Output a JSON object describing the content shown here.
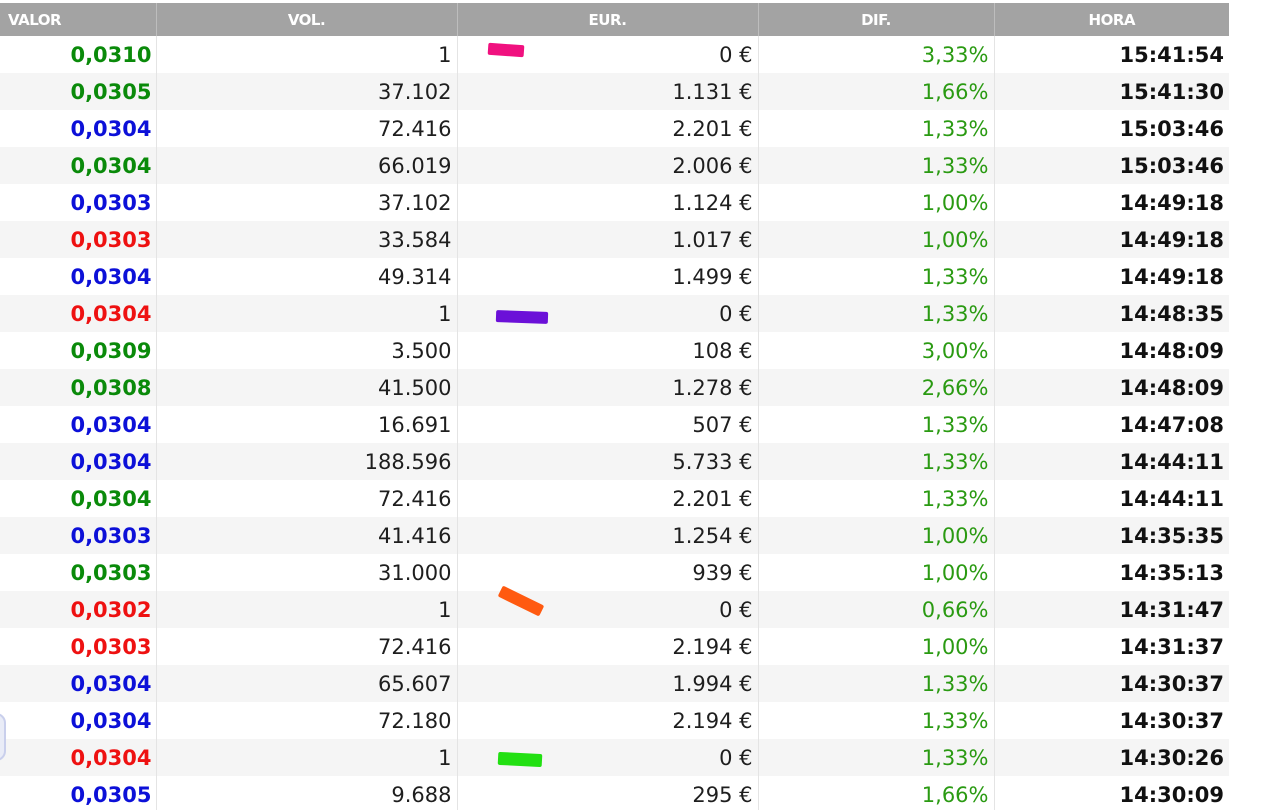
{
  "columns": {
    "valor": "VALOR",
    "vol": "VOL.",
    "eur": "EUR.",
    "dif": "DIF.",
    "hora": "HORA"
  },
  "colors": {
    "green": "#0a8a0a",
    "blue": "#0c10d8",
    "red": "#ee1111",
    "dif_green": "#2a9a12",
    "header_bg": "#a3a3a3"
  },
  "rows": [
    {
      "valor": "0,0310",
      "valor_color": "green",
      "vol": "1",
      "eur": "0 €",
      "dif": "3,33%",
      "hora": "15:41:54",
      "mark": "pink"
    },
    {
      "valor": "0,0305",
      "valor_color": "green",
      "vol": "37.102",
      "eur": "1.131 €",
      "dif": "1,66%",
      "hora": "15:41:30"
    },
    {
      "valor": "0,0304",
      "valor_color": "blue",
      "vol": "72.416",
      "eur": "2.201 €",
      "dif": "1,33%",
      "hora": "15:03:46"
    },
    {
      "valor": "0,0304",
      "valor_color": "green",
      "vol": "66.019",
      "eur": "2.006 €",
      "dif": "1,33%",
      "hora": "15:03:46"
    },
    {
      "valor": "0,0303",
      "valor_color": "blue",
      "vol": "37.102",
      "eur": "1.124 €",
      "dif": "1,00%",
      "hora": "14:49:18"
    },
    {
      "valor": "0,0303",
      "valor_color": "red",
      "vol": "33.584",
      "eur": "1.017 €",
      "dif": "1,00%",
      "hora": "14:49:18"
    },
    {
      "valor": "0,0304",
      "valor_color": "blue",
      "vol": "49.314",
      "eur": "1.499 €",
      "dif": "1,33%",
      "hora": "14:49:18"
    },
    {
      "valor": "0,0304",
      "valor_color": "red",
      "vol": "1",
      "eur": "0 €",
      "dif": "1,33%",
      "hora": "14:48:35",
      "mark": "purple"
    },
    {
      "valor": "0,0309",
      "valor_color": "green",
      "vol": "3.500",
      "eur": "108 €",
      "dif": "3,00%",
      "hora": "14:48:09"
    },
    {
      "valor": "0,0308",
      "valor_color": "green",
      "vol": "41.500",
      "eur": "1.278 €",
      "dif": "2,66%",
      "hora": "14:48:09"
    },
    {
      "valor": "0,0304",
      "valor_color": "blue",
      "vol": "16.691",
      "eur": "507 €",
      "dif": "1,33%",
      "hora": "14:47:08"
    },
    {
      "valor": "0,0304",
      "valor_color": "blue",
      "vol": "188.596",
      "eur": "5.733 €",
      "dif": "1,33%",
      "hora": "14:44:11"
    },
    {
      "valor": "0,0304",
      "valor_color": "green",
      "vol": "72.416",
      "eur": "2.201 €",
      "dif": "1,33%",
      "hora": "14:44:11"
    },
    {
      "valor": "0,0303",
      "valor_color": "blue",
      "vol": "41.416",
      "eur": "1.254 €",
      "dif": "1,00%",
      "hora": "14:35:35"
    },
    {
      "valor": "0,0303",
      "valor_color": "green",
      "vol": "31.000",
      "eur": "939 €",
      "dif": "1,00%",
      "hora": "14:35:13"
    },
    {
      "valor": "0,0302",
      "valor_color": "red",
      "vol": "1",
      "eur": "0 €",
      "dif": "0,66%",
      "hora": "14:31:47",
      "mark": "orange"
    },
    {
      "valor": "0,0303",
      "valor_color": "red",
      "vol": "72.416",
      "eur": "2.194 €",
      "dif": "1,00%",
      "hora": "14:31:37"
    },
    {
      "valor": "0,0304",
      "valor_color": "blue",
      "vol": "65.607",
      "eur": "1.994 €",
      "dif": "1,33%",
      "hora": "14:30:37"
    },
    {
      "valor": "0,0304",
      "valor_color": "blue",
      "vol": "72.180",
      "eur": "2.194 €",
      "dif": "1,33%",
      "hora": "14:30:37"
    },
    {
      "valor": "0,0304",
      "valor_color": "red",
      "vol": "1",
      "eur": "0 €",
      "dif": "1,33%",
      "hora": "14:30:26",
      "mark": "green"
    },
    {
      "valor": "0,0305",
      "valor_color": "blue",
      "vol": "9.688",
      "eur": "295 €",
      "dif": "1,66%",
      "hora": "14:30:09"
    }
  ],
  "marks": {
    "pink": {
      "color": "#f0117f"
    },
    "purple": {
      "color": "#6b10d8"
    },
    "orange": {
      "color": "#ff5a10"
    },
    "green": {
      "color": "#22e012"
    }
  }
}
